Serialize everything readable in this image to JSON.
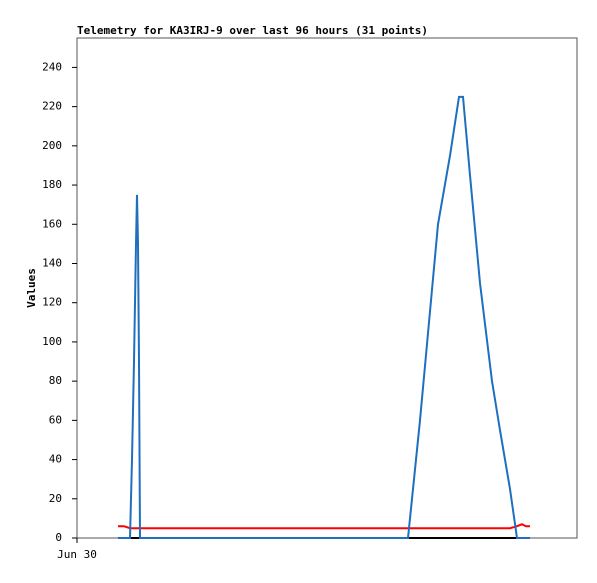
{
  "chart_data": {
    "type": "line",
    "title": "Telemetry for KA3IRJ-9 over last 96 hours (31 points)",
    "y_label": "Values",
    "x": [
      8.2,
      9.4,
      10.6,
      11,
      11.4,
      11.8,
      12,
      12.2,
      12.4,
      12.6,
      14.6,
      24.6,
      34.6,
      44.6,
      54.6,
      64.6,
      66.2,
      68.6,
      72.2,
      74.6,
      76.4,
      77.2,
      78.6,
      80.6,
      83,
      84.6,
      86.6,
      88,
      89,
      89.8,
      90.6
    ],
    "series": [
      {
        "color": "#000000",
        "values": [
          0,
          0,
          0,
          0,
          0,
          0,
          0,
          0,
          0,
          0,
          0,
          0,
          0,
          0,
          0,
          0,
          0,
          0,
          0,
          0,
          0,
          0,
          0,
          0,
          0,
          0,
          0,
          0,
          0,
          0,
          0
        ]
      },
      {
        "color": "#ff0000",
        "values": [
          6,
          6,
          5,
          5,
          5,
          5,
          5,
          5,
          5,
          5,
          5,
          5,
          5,
          5,
          5,
          5,
          5,
          5,
          5,
          5,
          5,
          5,
          5,
          5,
          5,
          5,
          5,
          6,
          7,
          6,
          6
        ]
      },
      {
        "color": "#1f6fbf",
        "values": [
          0,
          0,
          0,
          40,
          90,
          150,
          175,
          150,
          90,
          0,
          0,
          0,
          0,
          0,
          0,
          0,
          0,
          60,
          160,
          195,
          225,
          225,
          185,
          130,
          80,
          55,
          25,
          0,
          0,
          0,
          0
        ]
      }
    ],
    "xlim": [
      0,
      100
    ],
    "xticks": [
      {
        "value": 0,
        "label": "Jun 30"
      }
    ],
    "ylim": [
      0,
      255
    ],
    "yticks": [
      0,
      20,
      40,
      60,
      80,
      100,
      120,
      140,
      160,
      180,
      200,
      220,
      240
    ]
  }
}
